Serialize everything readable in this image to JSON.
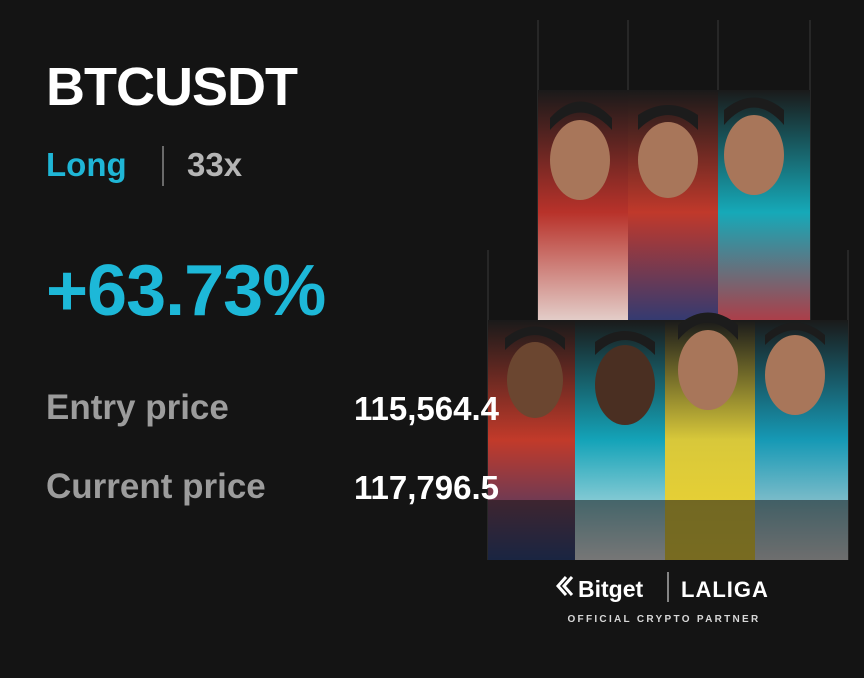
{
  "symbol": "BTCUSDT",
  "position": {
    "side": "Long",
    "leverage": "33x"
  },
  "pnl": "+63.73%",
  "prices": [
    {
      "label": "Entry price",
      "value": "115,564.4"
    },
    {
      "label": "Current price",
      "value": "117,796.5"
    }
  ],
  "brand": {
    "name": "Bitget",
    "partner": "LALIGA",
    "tagline": "OFFICIAL CRYPTO PARTNER"
  }
}
